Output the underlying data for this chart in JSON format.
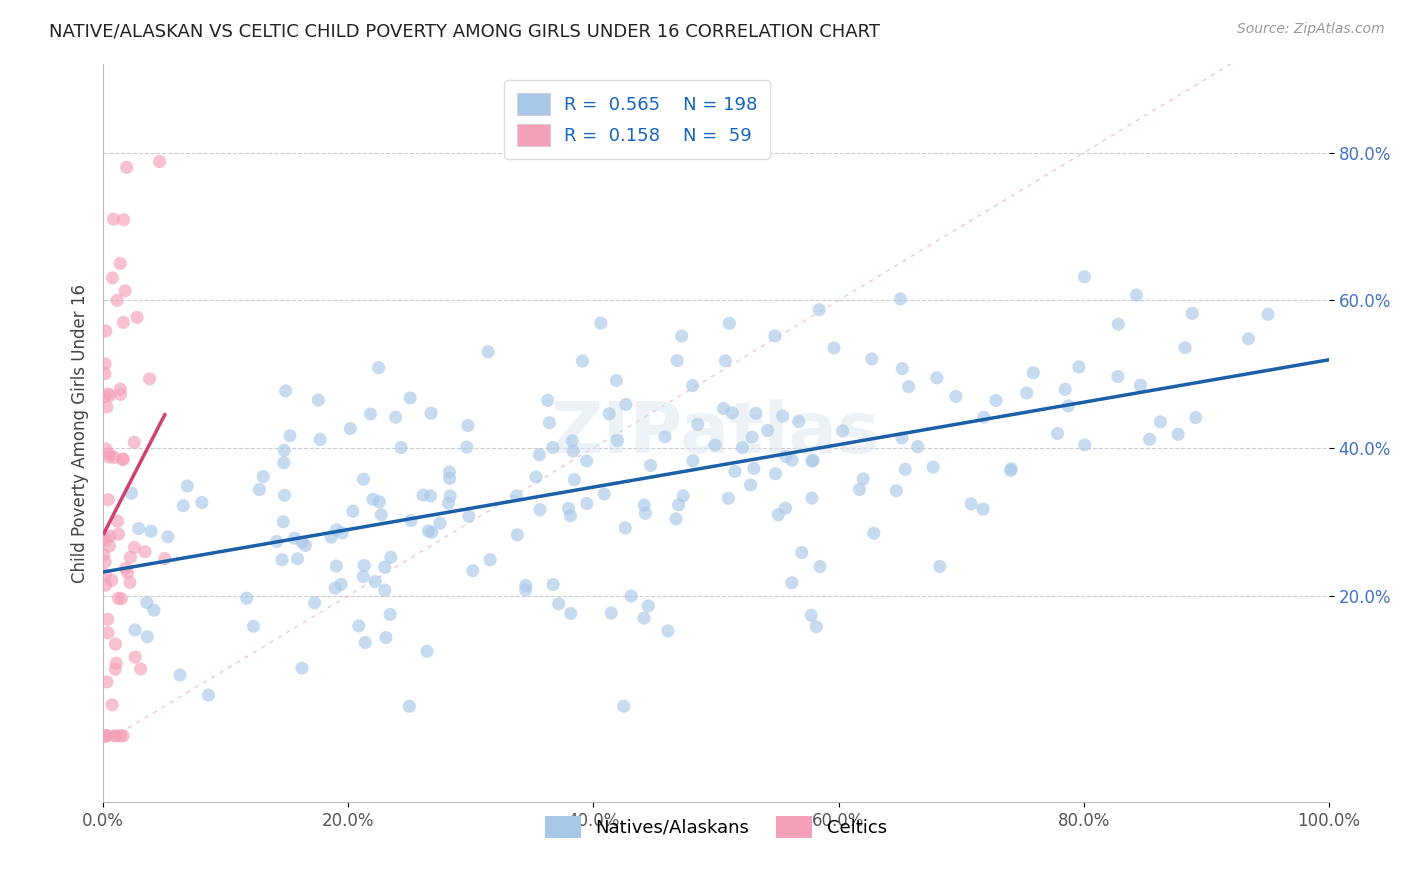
{
  "title": "NATIVE/ALASKAN VS CELTIC CHILD POVERTY AMONG GIRLS UNDER 16 CORRELATION CHART",
  "source": "Source: ZipAtlas.com",
  "ylabel": "Child Poverty Among Girls Under 16",
  "xlim": [
    0,
    1.0
  ],
  "ylim": [
    -0.08,
    0.92
  ],
  "blue_R": 0.565,
  "blue_N": 198,
  "pink_R": 0.158,
  "pink_N": 59,
  "blue_color": "#a8c8e8",
  "pink_color": "#f4a0b8",
  "blue_line_color": "#1a5fa8",
  "pink_line_color": "#d04070",
  "ref_line_color": "#e8b0c0",
  "watermark": "ZIPatlas",
  "xtick_labels": [
    "0.0%",
    "20.0%",
    "40.0%",
    "60.0%",
    "80.0%",
    "100.0%"
  ],
  "xtick_vals": [
    0.0,
    0.2,
    0.4,
    0.6,
    0.8,
    1.0
  ],
  "ytick_labels": [
    "20.0%",
    "40.0%",
    "60.0%",
    "80.0%"
  ],
  "ytick_vals": [
    0.2,
    0.4,
    0.6,
    0.8
  ],
  "legend_labels": [
    "Natives/Alaskans",
    "Celtics"
  ],
  "blue_seed": 42,
  "pink_seed": 99
}
